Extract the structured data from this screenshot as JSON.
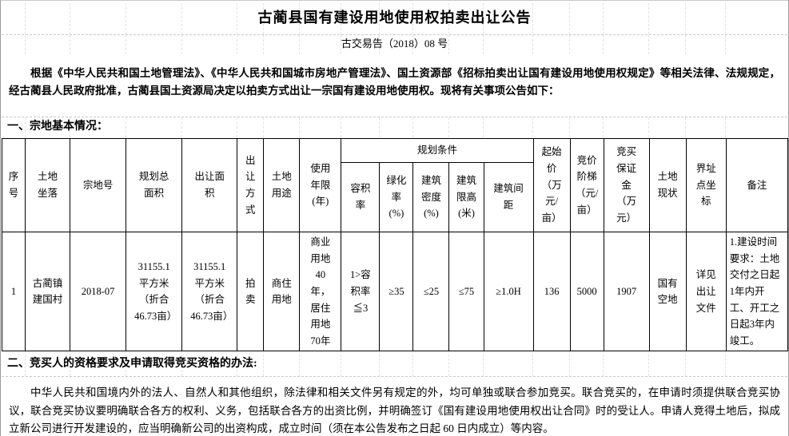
{
  "page": {
    "title": "古蔺县国有建设用地使用权拍卖出让公告",
    "doc_number": "古交易告（2018）08 号",
    "intro_paragraph": "根据《中华人民共和国土地管理法》、《中华人民共和国城市房地产管理法》、国土资源部《招标拍卖出让国有建设用地使用权规定》等相关法律、法规规定， 经古蔺县人民政府批准，古蔺县国土资源局决定以拍卖方式出让一宗国有建设用地使用权。现将有关事项公告如下：",
    "section1_heading": "一、宗地基本情况：",
    "section2_heading": "二、竞买人的资格要求及申请取得竞买资格的办法:",
    "section2_paragraph": "中华人民共和国境内外的法人、自然人和其他组织，除法律和相关文件另有规定的外，均可单独或联合参加竞买。联合竞买的，在申请时须提供联合竞买协议，联合竞买协议要明确联合各方的权利、义务，包括联合各方的出资比例，并明确签订《国有建设用地使用权出让合同》时的受让人。申请人竞得土地后，拟成立新公司进行开发建设的，应当明确新公司的出资构成，成立时间（须在本公告发布之日起 60 日内成立）等内容。"
  },
  "table": {
    "group_header": "规划条件",
    "headers": {
      "index": "序号",
      "location": "土地坐落",
      "parcel_no": "宗地号",
      "planned_area": "规划总面积",
      "transfer_area": "出让面积",
      "transfer_method": "出让方式",
      "land_use": "土地用途",
      "use_term": "使用年限(年)",
      "plot_ratio": "容积率",
      "green_rate": "绿化率(%)",
      "building_density": "建筑密度(%)",
      "height_limit": "建筑限高(米)",
      "building_spacing": "建筑间距",
      "starting_price": "起始价（万元/亩）",
      "bid_increment": "竞价阶梯（元/亩）",
      "deposit": "竞买保证金（万元）",
      "land_status": "土地现状",
      "boundary_coords": "界址点坐标",
      "remarks": "备注"
    },
    "row": {
      "index": "1",
      "location": "古蔺镇建国村",
      "parcel_no": "2018-07",
      "planned_area": "31155.1平方米（折合46.73亩）",
      "transfer_area": "31155.1平方米（折合46.73亩）",
      "transfer_method": "拍卖",
      "land_use": "商住用地",
      "use_term": "商业用地40年，居住用地70年",
      "plot_ratio": "1>容积率≦3",
      "green_rate": "≥35",
      "building_density": "≤25",
      "height_limit": "≤75",
      "building_spacing": "≥1.0H",
      "starting_price": "136",
      "bid_increment": "5000",
      "deposit": "1907",
      "land_status": "国有空地",
      "boundary_coords": "详见出让文件",
      "remarks": "1.建设时间要求：土地交付之日起1年内开工、开工之日起3年内竣工。"
    }
  },
  "colors": {
    "text": "#000000",
    "table_border": "#000000",
    "grid_dashed": "#c9c9c9"
  }
}
